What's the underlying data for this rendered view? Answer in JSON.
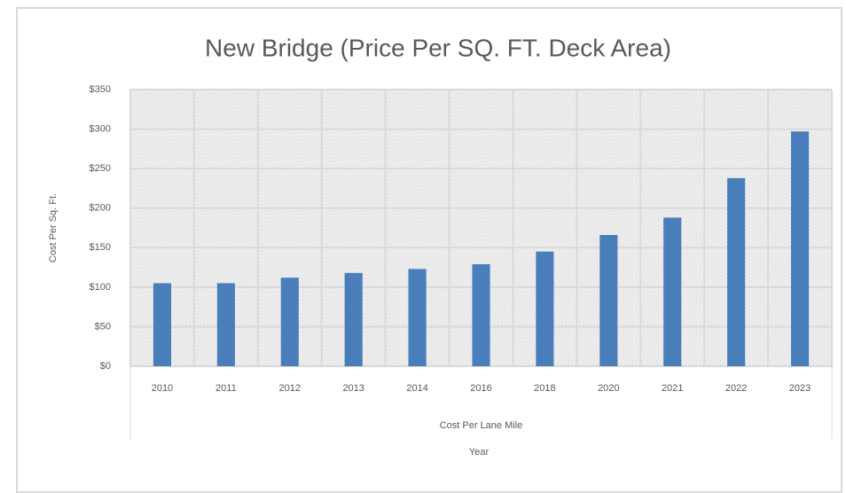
{
  "chart_data": {
    "type": "bar",
    "title": "New Bridge (Price Per SQ. FT. Deck Area)",
    "y_label": "Cost Per Sq. Ft.",
    "x_label": "Year",
    "categories": [
      "2010",
      "2011",
      "2012",
      "2013",
      "2014",
      "2016",
      "2018",
      "2020",
      "2021",
      "2022",
      "2023"
    ],
    "series": [
      {
        "name": "Cost Per Lane Mile",
        "color": "#4a7ebb",
        "values": [
          105,
          105,
          112,
          118,
          123,
          129,
          145,
          166,
          188,
          238,
          297
        ]
      }
    ],
    "ylim": [
      0,
      350
    ],
    "yticks": [
      {
        "value": 0,
        "label": "$0"
      },
      {
        "value": 50,
        "label": "$50"
      },
      {
        "value": 100,
        "label": "$100"
      },
      {
        "value": 150,
        "label": "$150"
      },
      {
        "value": 200,
        "label": "$200"
      },
      {
        "value": 250,
        "label": "$250"
      },
      {
        "value": 300,
        "label": "$300"
      },
      {
        "value": 350,
        "label": "$350"
      }
    ],
    "grid": true
  }
}
